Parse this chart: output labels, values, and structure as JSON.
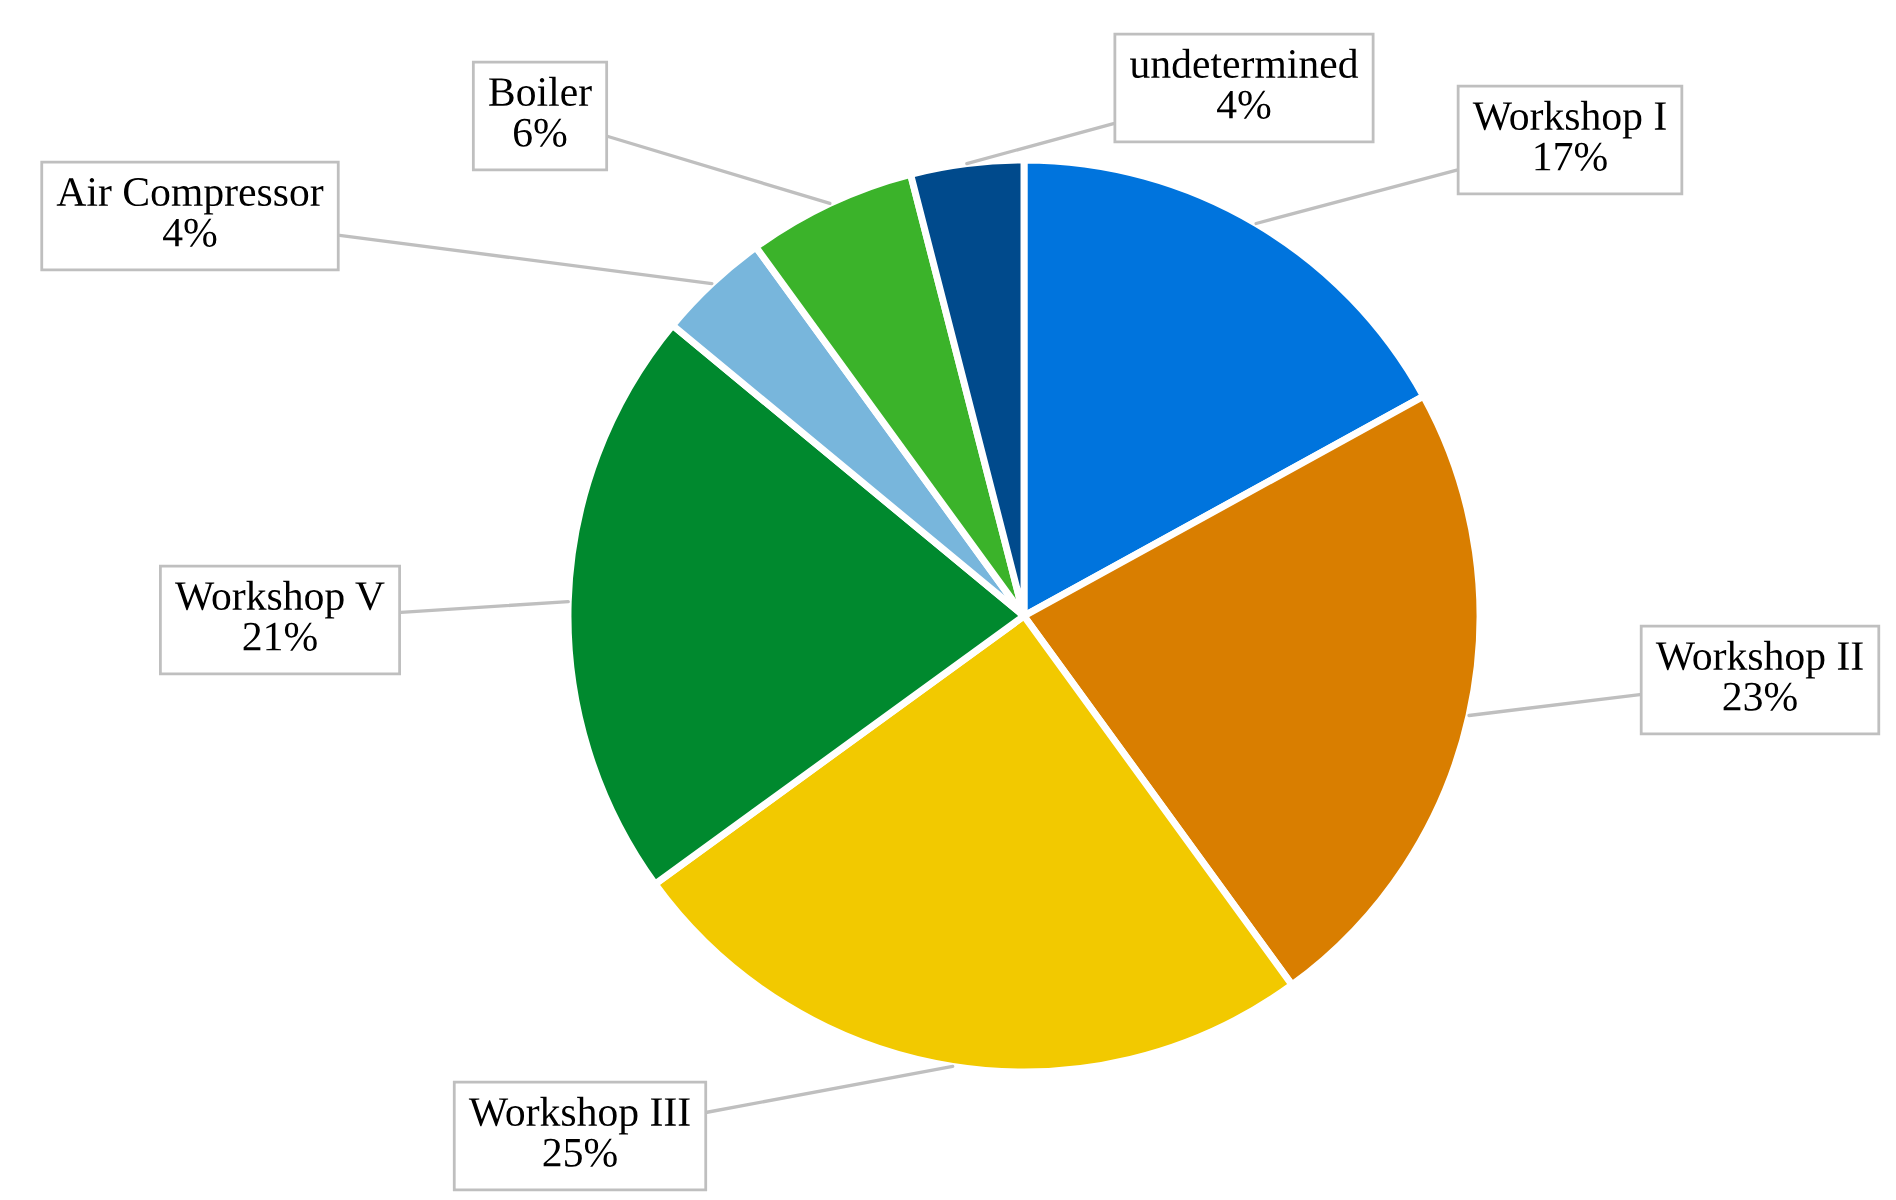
{
  "chart_data": {
    "type": "pie",
    "categories": [
      "Workshop I",
      "Workshop II",
      "Workshop III",
      "Workshop V",
      "Air Compressor",
      "Boiler",
      "undetermined"
    ],
    "values": [
      17,
      23,
      25,
      21,
      4,
      6,
      4
    ],
    "value_labels": [
      "17%",
      "23%",
      "25%",
      "21%",
      "4%",
      "6%",
      "4%"
    ],
    "colors": [
      "#0074dd",
      "#d97e00",
      "#f2c900",
      "#00892e",
      "#78b6dc",
      "#3bb32a",
      "#004a8c"
    ],
    "legend": false
  }
}
